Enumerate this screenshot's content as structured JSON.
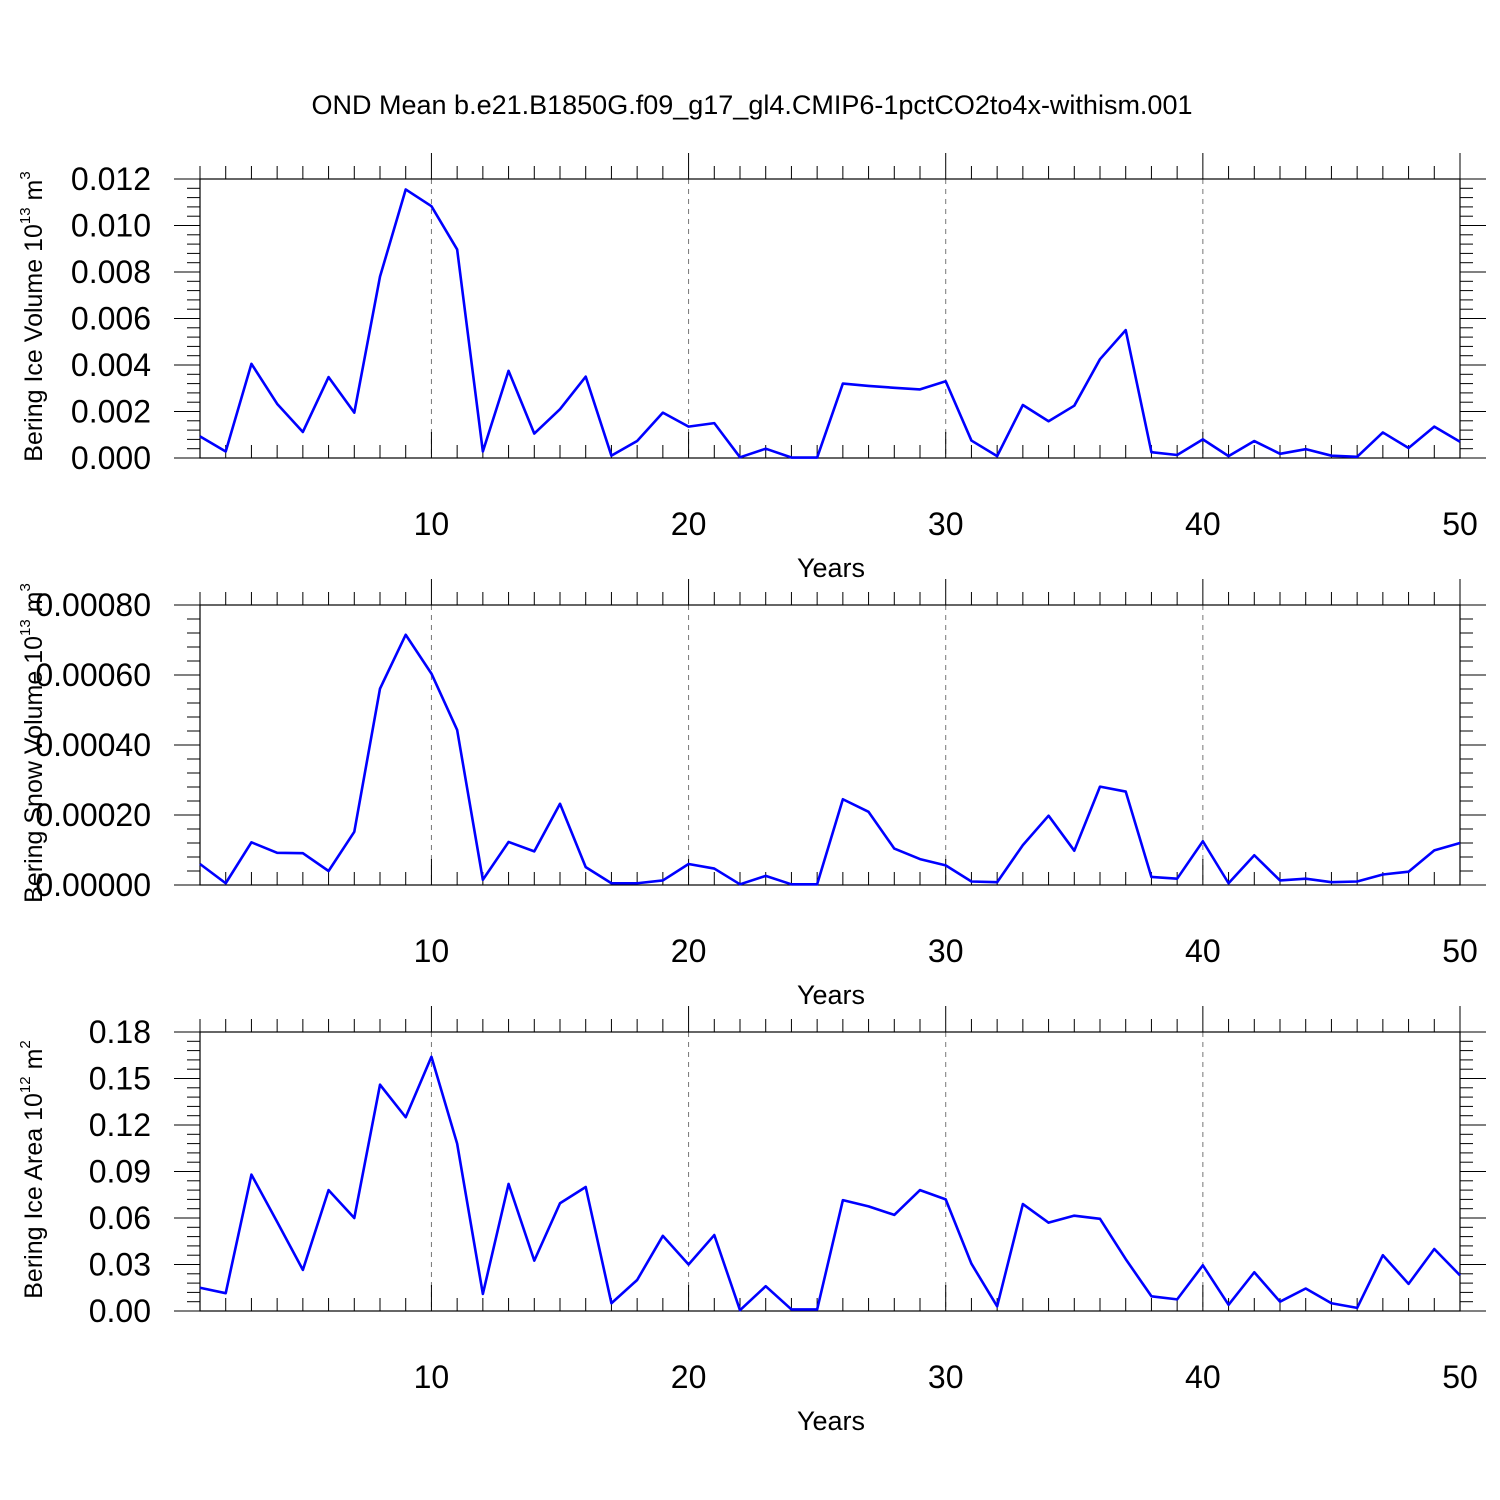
{
  "figure": {
    "title": "OND Mean b.e21.B1850G.f09_g17_gl4.CMIP6-1pctCO2to4x-withism.001"
  },
  "chart_data": [
    {
      "type": "line",
      "xlabel": "Years",
      "ylabel": {
        "text": "Bering Ice Volume 10",
        "exp": "13",
        "unit": " m",
        "unit_exp": "3"
      },
      "xlim": [
        1,
        50
      ],
      "ylim": [
        0,
        0.012
      ],
      "xticks": [
        10,
        20,
        30,
        40,
        50
      ],
      "yticks": [
        0.0,
        0.002,
        0.004,
        0.006,
        0.008,
        0.01,
        0.012
      ],
      "ytick_labels": [
        "0.000",
        "0.002",
        "0.004",
        "0.006",
        "0.008",
        "0.010",
        "0.012"
      ],
      "grid": "vertical-dashed",
      "series": [
        {
          "color": "#0000ff",
          "values": [
            0.00093,
            0.00028,
            0.00405,
            0.00233,
            0.00112,
            0.00348,
            0.00195,
            0.0078,
            0.01155,
            0.01083,
            0.00897,
            0.00028,
            0.00375,
            0.00105,
            0.0021,
            0.0035,
            0.0001,
            0.00073,
            0.00195,
            0.00135,
            0.0015,
            3e-05,
            0.0004,
            2e-05,
            2e-05,
            0.0032,
            0.0031,
            0.00302,
            0.00295,
            0.0033,
            0.00075,
            8e-05,
            0.00228,
            0.00158,
            0.00225,
            0.00425,
            0.0055,
            0.00025,
            0.00013,
            0.0008,
            8e-05,
            0.00073,
            0.00018,
            0.00038,
            0.0001,
            5e-05,
            0.0011,
            0.00043,
            0.00135,
            0.0007
          ]
        }
      ]
    },
    {
      "type": "line",
      "xlabel": "Years",
      "ylabel": {
        "text": "Bering Snow Volume 10",
        "exp": "13",
        "unit": " m",
        "unit_exp": "3"
      },
      "xlim": [
        1,
        50
      ],
      "ylim": [
        0,
        0.0008
      ],
      "xticks": [
        10,
        20,
        30,
        40,
        50
      ],
      "yticks": [
        0.0,
        0.0002,
        0.0004,
        0.0006,
        0.0008
      ],
      "ytick_labels": [
        "0.00000",
        "0.00020",
        "0.00040",
        "0.00060",
        "0.00080"
      ],
      "grid": "vertical-dashed",
      "series": [
        {
          "color": "#0000ff",
          "values": [
            6e-05,
            5e-06,
            0.000122,
            9.2e-05,
            9.1e-05,
            4e-05,
            0.000152,
            0.000561,
            0.000715,
            0.000604,
            0.000443,
            1.5e-05,
            0.000123,
            9.6e-05,
            0.000232,
            5.1e-05,
            5e-06,
            5e-06,
            1.3e-05,
            6e-05,
            4.7e-05,
            2e-06,
            2.6e-05,
            2e-06,
            2e-06,
            0.000245,
            0.000209,
            0.000104,
            7.4e-05,
            5.6e-05,
            1e-05,
            8e-06,
            0.000114,
            0.000198,
            9.8e-05,
            0.000281,
            0.000267,
            2.3e-05,
            1.8e-05,
            0.000125,
            5e-06,
            8.5e-05,
            1.3e-05,
            1.8e-05,
            8e-06,
            1e-05,
            3e-05,
            3.8e-05,
            9.9e-05,
            0.00012
          ]
        }
      ]
    },
    {
      "type": "line",
      "xlabel": "Years",
      "ylabel": {
        "text": "Bering Ice Area 10",
        "exp": "12",
        "unit": " m",
        "unit_exp": "2"
      },
      "xlim": [
        1,
        50
      ],
      "ylim": [
        0,
        0.18
      ],
      "xticks": [
        10,
        20,
        30,
        40,
        50
      ],
      "yticks": [
        0.0,
        0.03,
        0.06,
        0.09,
        0.12,
        0.15,
        0.18
      ],
      "ytick_labels": [
        "0.00",
        "0.03",
        "0.06",
        "0.09",
        "0.12",
        "0.15",
        "0.18"
      ],
      "grid": "vertical-dashed",
      "series": [
        {
          "color": "#0000ff",
          "values": [
            0.015,
            0.0115,
            0.088,
            0.0575,
            0.0265,
            0.078,
            0.06,
            0.146,
            0.125,
            0.164,
            0.108,
            0.011,
            0.082,
            0.0325,
            0.0695,
            0.08,
            0.005,
            0.02,
            0.0485,
            0.03,
            0.049,
            0.0005,
            0.016,
            0.001,
            0.001,
            0.0715,
            0.0675,
            0.062,
            0.078,
            0.072,
            0.0305,
            0.003,
            0.069,
            0.057,
            0.0615,
            0.0595,
            0.0335,
            0.0095,
            0.0075,
            0.0295,
            0.004,
            0.025,
            0.006,
            0.0145,
            0.005,
            0.002,
            0.036,
            0.0175,
            0.04,
            0.023
          ]
        }
      ]
    }
  ]
}
